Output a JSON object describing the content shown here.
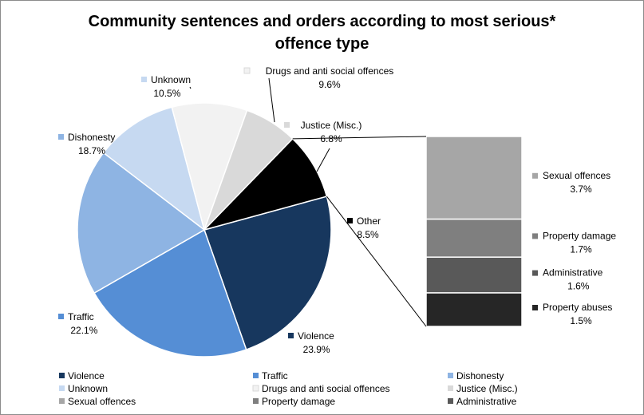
{
  "chart_data": {
    "type": "pie",
    "title": "Community sentences and orders according to most serious*\noffence type",
    "value_unit": "%",
    "series": [
      {
        "name": "",
        "slices": [
          {
            "label": "Violence",
            "value": 23.9,
            "display": "23.9%",
            "color": "#17375e"
          },
          {
            "label": "Traffic",
            "value": 22.1,
            "display": "22.1%",
            "color": "#558ed5"
          },
          {
            "label": "Dishonesty",
            "value": 18.7,
            "display": "18.7%",
            "color": "#8eb4e3"
          },
          {
            "label": "Unknown",
            "value": 10.5,
            "display": "10.5%",
            "color": "#c6d9f1"
          },
          {
            "label": "Drugs and anti social offences",
            "value": 9.6,
            "display": "9.6%",
            "color": "#f2f2f2"
          },
          {
            "label": "Justice (Misc.)",
            "value": 6.8,
            "display": "6.8%",
            "color": "#d9d9d9"
          },
          {
            "label": "Other",
            "value": 8.5,
            "display": "8.5%",
            "color": "#000000"
          }
        ]
      },
      {
        "name": "",
        "breakdown_of": "Other",
        "segments": [
          {
            "label": "Sexual offences",
            "value": 3.7,
            "display": "3.7%",
            "color": "#a6a6a6"
          },
          {
            "label": "Property damage",
            "value": 1.7,
            "display": "1.7%",
            "color": "#7f7f7f"
          },
          {
            "label": "Administrative",
            "value": 1.6,
            "display": "1.6%",
            "color": "#595959"
          },
          {
            "label": "Property abuses",
            "value": 1.5,
            "display": "1.5%",
            "color": "#262626"
          }
        ]
      }
    ],
    "legend": {
      "placement": "bottom",
      "entries": [
        {
          "label": "Violence",
          "color": "#17375e"
        },
        {
          "label": "Traffic",
          "color": "#558ed5"
        },
        {
          "label": "Dishonesty",
          "color": "#8eb4e3"
        },
        {
          "label": "Unknown",
          "color": "#c6d9f1"
        },
        {
          "label": "Drugs and anti social offences",
          "color": "#f2f2f2"
        },
        {
          "label": "Justice (Misc.)",
          "color": "#d9d9d9"
        },
        {
          "label": "Sexual offences",
          "color": "#a6a6a6"
        },
        {
          "label": "Property damage",
          "color": "#7f7f7f"
        },
        {
          "label": "Administrative",
          "color": "#595959"
        }
      ]
    }
  }
}
